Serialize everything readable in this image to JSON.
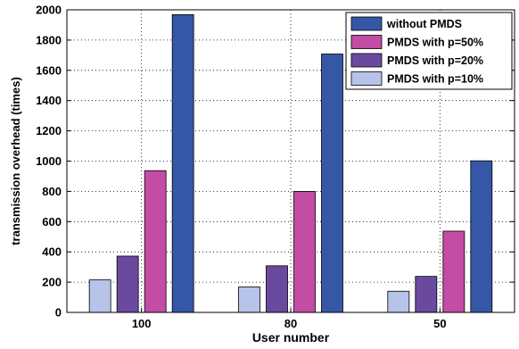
{
  "chart_data": {
    "type": "bar",
    "title": "",
    "xlabel": "User number",
    "ylabel": "transmission overhead (times)",
    "categories": [
      "100",
      "80",
      "50"
    ],
    "ylim": [
      0,
      2000
    ],
    "yticks": [
      0,
      200,
      400,
      600,
      800,
      1000,
      1200,
      1400,
      1600,
      1800,
      2000
    ],
    "grid": true,
    "legend_position": "top-right",
    "series": [
      {
        "name": "PMDS with p=10%",
        "color": "#b7c3e8",
        "values": [
          215,
          168,
          140
        ]
      },
      {
        "name": "PMDS with p=20%",
        "color": "#6a4a9e",
        "values": [
          372,
          308,
          238
        ]
      },
      {
        "name": "PMDS with p=50%",
        "color": "#c34da4",
        "values": [
          937,
          800,
          537
        ]
      },
      {
        "name": "without PMDS",
        "color": "#3557a6",
        "values": [
          1968,
          1708,
          1002
        ]
      }
    ],
    "legend_order": [
      3,
      2,
      1,
      0
    ]
  }
}
